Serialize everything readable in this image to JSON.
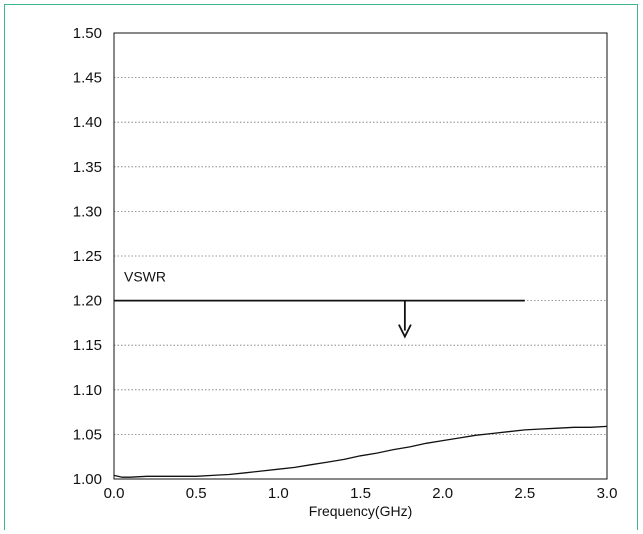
{
  "chart_data": {
    "type": "line",
    "title": "",
    "xlabel": "Frequency(GHz)",
    "ylabel": "",
    "xlim": [
      0.0,
      3.0
    ],
    "ylim": [
      1.0,
      1.5
    ],
    "xticks": [
      "0.0",
      "0.5",
      "1.0",
      "1.5",
      "2.0",
      "2.5",
      "3.0"
    ],
    "yticks": [
      "1.00",
      "1.05",
      "1.10",
      "1.15",
      "1.20",
      "1.25",
      "1.30",
      "1.35",
      "1.40",
      "1.45",
      "1.50"
    ],
    "grid": "horizontal-dotted",
    "series": [
      {
        "x": [
          0.0,
          0.05,
          0.1,
          0.2,
          0.3,
          0.4,
          0.5,
          0.6,
          0.7,
          0.8,
          0.9,
          1.0,
          1.1,
          1.2,
          1.3,
          1.4,
          1.5,
          1.6,
          1.7,
          1.8,
          1.9,
          2.0,
          2.1,
          2.2,
          2.3,
          2.4,
          2.5,
          2.6,
          2.7,
          2.8,
          2.9,
          3.0
        ],
        "values": [
          1.004,
          1.002,
          1.002,
          1.003,
          1.003,
          1.003,
          1.003,
          1.004,
          1.005,
          1.007,
          1.009,
          1.011,
          1.013,
          1.016,
          1.019,
          1.022,
          1.026,
          1.029,
          1.033,
          1.036,
          1.04,
          1.043,
          1.046,
          1.049,
          1.051,
          1.053,
          1.055,
          1.056,
          1.057,
          1.058,
          1.058,
          1.059
        ]
      }
    ],
    "annotations": {
      "spec_label": "VSWR",
      "spec_value": 1.2,
      "spec_x_end": 2.5,
      "arrow_x": 1.77
    }
  }
}
